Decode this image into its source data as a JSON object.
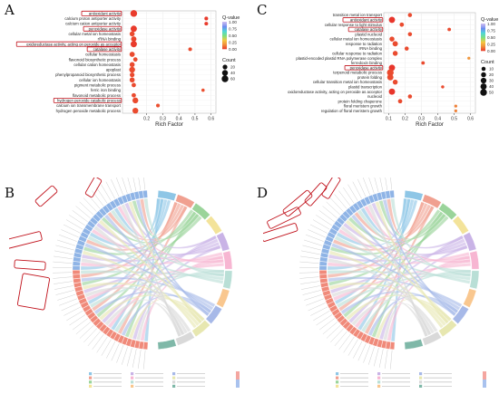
{
  "figure": {
    "panel_labels": [
      "A",
      "B",
      "C",
      "D"
    ]
  },
  "colors": {
    "qvalue_gradient": [
      "#c8b8f0",
      "#6d8cf0",
      "#4fd6d6",
      "#7ee07e",
      "#f2c742",
      "#f08a3a",
      "#e8302a"
    ],
    "highlight_box": "#c0101a",
    "dot": "#e8302a",
    "chord_palette": [
      "#8ec6e6",
      "#f0a090",
      "#9ad49a",
      "#f3e39a",
      "#c9b3e6",
      "#f7b6d2",
      "#b9dfd6",
      "#f9c78f",
      "#a7b9e8",
      "#e7e7b0",
      "#d9d9d9",
      "#7fb8a8"
    ],
    "dot_a_ring_left": "#f08a7a",
    "dot_b_ring_left": "#8fb4e6"
  },
  "chart_data": [
    {
      "type": "scatter",
      "panel": "A",
      "categories": [
        "antioxidant activity",
        "calcium proton antiporter activity",
        "calcium cation antiporter activity",
        "peroxidase activity",
        "cellular metal ion homeostasis",
        "rRNA binding",
        "oxidoreductase activity, acting on peroxide as acceptor",
        "catalase activity",
        "cellular homeostasis",
        "flavonoid biosynthetic process",
        "cellular cation homeostasis",
        "apoplast",
        "phenylpropanoid biosynthetic process",
        "cellular ion homeostasis",
        "pigment metabolic process",
        "ferric iron binding",
        "flavonoid metabolic process",
        "hydrogen peroxide catabolic process",
        "calcium ion transmembrane transport",
        "hydrogen peroxide metabolic process"
      ],
      "values": [
        0.12,
        0.57,
        0.57,
        0.12,
        0.11,
        0.12,
        0.12,
        0.47,
        0.11,
        0.13,
        0.11,
        0.11,
        0.11,
        0.11,
        0.12,
        0.55,
        0.12,
        0.13,
        0.27,
        0.13
      ],
      "counts": [
        60,
        8,
        8,
        50,
        25,
        30,
        50,
        8,
        28,
        15,
        25,
        40,
        20,
        25,
        15,
        4,
        15,
        40,
        8,
        40
      ],
      "qvalue": [
        0.02,
        0.02,
        0.02,
        0.02,
        0.05,
        0.04,
        0.02,
        0.05,
        0.05,
        0.05,
        0.05,
        0.05,
        0.05,
        0.05,
        0.05,
        0.06,
        0.05,
        0.05,
        0.06,
        0.05
      ],
      "highlighted": [
        "antioxidant activity",
        "peroxidase activity",
        "oxidoreductase activity, acting on peroxide as acceptor",
        "catalase activity",
        "hydrogen peroxide catabolic process"
      ],
      "xlabel": "Rich Factor",
      "xticks": [
        "0.2",
        "0.3",
        "0.4",
        "0.5",
        "0.6"
      ],
      "xlim": [
        0.05,
        0.63
      ],
      "legend_color_title": "Q-value",
      "legend_color_ticks": [
        "1.00",
        "0.75",
        "0.50",
        "0.25",
        "0.00"
      ],
      "legend_size_title": "Count",
      "legend_size_ticks": [
        "20",
        "40",
        "60"
      ],
      "legend_size_values": [
        20,
        40,
        60
      ]
    },
    {
      "type": "scatter",
      "panel": "C",
      "categories": [
        "transition metal ion transport",
        "antioxidant activity",
        "cellular response to light stimulus",
        "catalase activity",
        "plastid nucleoid",
        "cellular metal ion homeostasis",
        "response to radiation",
        "rRNA binding",
        "cellular response to radiation",
        "plastid-encoded plastid RNA polymerase complex",
        "ferredoxin binding",
        "peroxidase activity",
        "terpenoid metabolic process",
        "protein folding",
        "cellular transition metal ion homeostasis",
        "plastid transcription",
        "oxidoreductase activity, acting on peroxide as acceptor",
        "nucleoid",
        "protein folding chaperone",
        "floral meristem growth",
        "regulation of floral meristem growth"
      ],
      "values": [
        0.23,
        0.12,
        0.18,
        0.47,
        0.23,
        0.12,
        0.14,
        0.21,
        0.14,
        0.59,
        0.31,
        0.12,
        0.11,
        0.11,
        0.14,
        0.43,
        0.12,
        0.23,
        0.17,
        0.51,
        0.51
      ],
      "counts": [
        10,
        40,
        12,
        5,
        10,
        20,
        25,
        10,
        20,
        2,
        5,
        40,
        50,
        40,
        20,
        3,
        40,
        10,
        12,
        2,
        2
      ],
      "qvalue": [
        0.05,
        0.01,
        0.05,
        0.05,
        0.05,
        0.05,
        0.05,
        0.05,
        0.05,
        0.2,
        0.05,
        0.01,
        0.05,
        0.05,
        0.05,
        0.05,
        0.01,
        0.05,
        0.05,
        0.15,
        0.15
      ],
      "highlighted": [
        "antioxidant activity",
        "catalase activity",
        "peroxidase activity"
      ],
      "xlabel": "Rich Factor",
      "xticks": [
        "0.1",
        "0.2",
        "0.3",
        "0.4",
        "0.5",
        "0.6"
      ],
      "xlim": [
        0.07,
        0.63
      ],
      "legend_color_title": "Q-value",
      "legend_color_ticks": [
        "1.00",
        "0.75",
        "0.50",
        "0.25",
        "0.00"
      ],
      "legend_size_title": "Count",
      "legend_size_ticks": [
        "10",
        "20",
        "30",
        "40",
        "50"
      ],
      "legend_size_values": [
        10,
        20,
        30,
        40,
        50
      ]
    },
    {
      "type": "chord",
      "panel": "B",
      "gene_count": 54,
      "term_count": 12,
      "highlight_groups": 4
    },
    {
      "type": "chord",
      "panel": "D",
      "gene_count": 54,
      "term_count": 12,
      "highlight_groups": 5
    }
  ]
}
